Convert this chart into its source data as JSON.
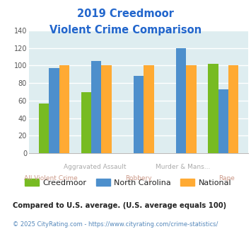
{
  "title_line1": "2019 Creedmoor",
  "title_line2": "Violent Crime Comparison",
  "categories": [
    "All Violent Crime",
    "Aggravated Assault",
    "Robbery",
    "Murder & Mans...",
    "Rape"
  ],
  "series": {
    "Creedmoor": [
      57,
      70,
      0,
      0,
      102
    ],
    "North Carolina": [
      97,
      105,
      88,
      120,
      73
    ],
    "National": [
      100,
      100,
      100,
      100,
      100
    ]
  },
  "colors": {
    "Creedmoor": "#77bb22",
    "North Carolina": "#4d8fcc",
    "National": "#ffaa33"
  },
  "ylim": [
    0,
    140
  ],
  "yticks": [
    0,
    20,
    40,
    60,
    80,
    100,
    120,
    140
  ],
  "bg_color": "#deedf0",
  "grid_color": "#ffffff",
  "title_color": "#2266cc",
  "top_xlabel_color": "#aaaaaa",
  "bot_xlabel_color": "#cc9988",
  "footnote1": "Compared to U.S. average. (U.S. average equals 100)",
  "footnote2": "© 2025 CityRating.com - https://www.cityrating.com/crime-statistics/",
  "footnote1_color": "#222222",
  "footnote2_color": "#5588bb",
  "legend_text_color": "#222222"
}
